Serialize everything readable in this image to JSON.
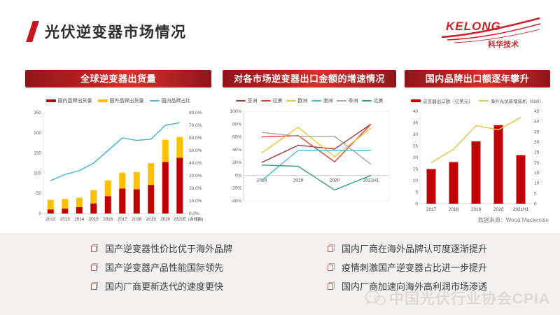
{
  "title": "光伏逆变器市场情况",
  "logo": {
    "brand": "KELONG",
    "subtitle": "科华技术"
  },
  "panels": [
    {
      "header": "全球逆变器出货量"
    },
    {
      "header": "对各市场逆变器出口金额的增速情况"
    },
    {
      "header": "国内品牌出口额逐年攀升"
    }
  ],
  "chart_data": [
    {
      "type": "bar",
      "title": "全球逆变器出货量",
      "categories": [
        "2012",
        "2013",
        "2014",
        "2015",
        "2016",
        "2017",
        "2018",
        "2019",
        "2020",
        "2021E"
      ],
      "x_suffix": "(含储能)",
      "series": [
        {
          "name": "国内品牌出货量",
          "type": "bar",
          "color": "#c00000",
          "values": [
            10,
            12,
            16,
            25,
            43,
            62,
            60,
            71,
            128,
            138
          ]
        },
        {
          "name": "国外品牌出货量",
          "type": "bar",
          "color": "#ffc000",
          "values": [
            24,
            24,
            23,
            33,
            39,
            39,
            43,
            54,
            55,
            52
          ]
        },
        {
          "name": "国内品牌占比",
          "type": "line",
          "axis": "right",
          "color": "#45b9d6",
          "values": [
            26,
            31,
            34,
            40,
            50,
            60,
            58,
            59,
            70,
            72
          ]
        }
      ],
      "y_left": {
        "min": 0,
        "max": 250,
        "step": 50
      },
      "y_right": {
        "min": 0,
        "max": 80,
        "step": 10,
        "format": "%"
      },
      "legend_position": "top",
      "grid": false
    },
    {
      "type": "line",
      "title": "对各市场逆变器出口金额的增速情况",
      "categories": [
        "2018",
        "2019",
        "2020",
        "2021H1"
      ],
      "series": [
        {
          "name": "亚洲",
          "color": "#9c3a40",
          "values": [
            20,
            47,
            41,
            80
          ]
        },
        {
          "name": "拉美",
          "color": "#e23e32",
          "values": [
            60,
            62,
            21,
            80
          ]
        },
        {
          "name": "欧洲",
          "color": "#eec32f",
          "values": [
            35,
            75,
            29,
            74
          ]
        },
        {
          "name": "澳洲",
          "color": "#41bcd2",
          "values": [
            -8,
            39,
            39,
            39
          ]
        },
        {
          "name": "非洲",
          "color": "#a6a6a6",
          "values": [
            67,
            61,
            61,
            17
          ]
        },
        {
          "name": "北美",
          "color": "#33a37a",
          "values": [
            16,
            14,
            -23,
            0
          ]
        }
      ],
      "y": {
        "min": -40,
        "max": 100,
        "step": 20,
        "format": "%"
      },
      "legend_position": "top",
      "grid": "zero-line-only"
    },
    {
      "type": "bar",
      "title": "国内品牌出口额逐年攀升",
      "categories": [
        "2017",
        "2018",
        "2019",
        "2020",
        "2021H1"
      ],
      "series": [
        {
          "name": "逆变器出口额（亿美元）",
          "type": "bar",
          "color": "#c00000",
          "values": [
            15,
            18,
            27,
            34,
            21
          ]
        },
        {
          "name": "海外光伏新增装机（GW）",
          "type": "line",
          "axis": "right",
          "color": "#e3c64d",
          "values": [
            20,
            26.5,
            38,
            36,
            42
          ]
        }
      ],
      "y_left": {
        "min": 0,
        "max": 40,
        "step": 5
      },
      "y_right": {
        "min": 0,
        "max": 45,
        "step": 5
      },
      "legend_position": "top",
      "grid": false
    }
  ],
  "bullets": {
    "left": [
      "国产逆变器性价比优于海外品牌",
      "国产逆变器产品性能国际领先",
      "国内厂商更新迭代的速度更快"
    ],
    "right": [
      "国内厂商在海外品牌认可度逐渐提升",
      "疫情刺激国产逆变器占比进一步提升",
      "国内厂商加速向海外高利润市场渗透"
    ]
  },
  "source_note": "数据来源：Wood Mackenzie",
  "watermark": "中国光伏行业协会CPIA",
  "colors": {
    "accent_red": "#c4161c",
    "header_red_dark": "#8f161b",
    "header_red_light": "#d73229",
    "bar_red": "#c00000",
    "bar_yellow": "#ffc000",
    "line_cyan": "#45b9d6"
  }
}
